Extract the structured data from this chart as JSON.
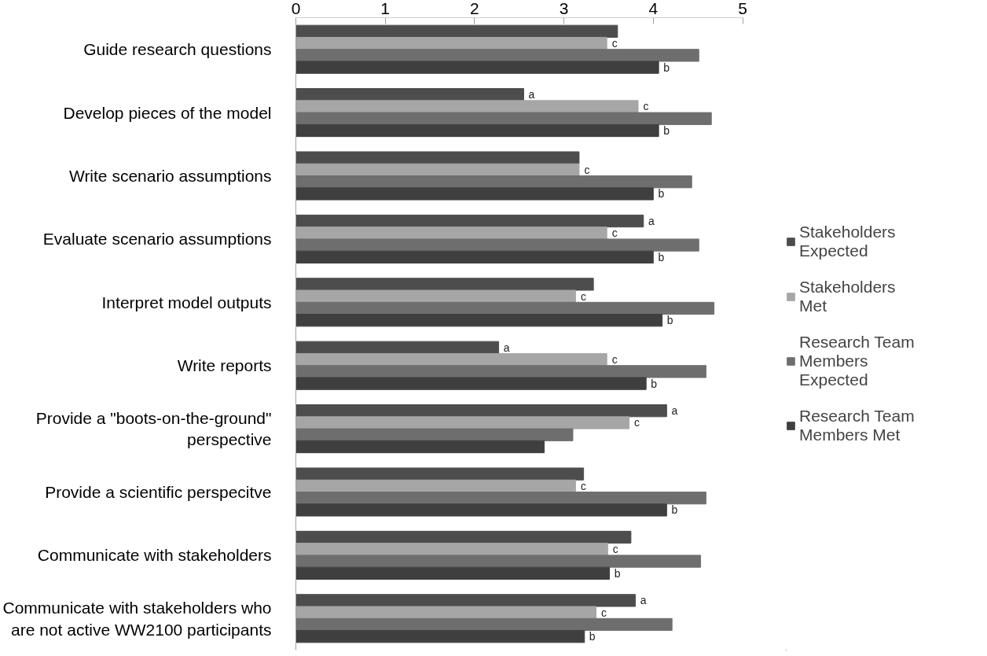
{
  "chart_data": {
    "type": "bar",
    "orientation": "horizontal",
    "categories": [
      "Guide research questions",
      "Develop pieces of the model",
      "Write scenario assumptions",
      "Evaluate scenario assumptions",
      "Interpret model outputs",
      "Write reports",
      "Provide a \"boots-on-the-ground\" perspective",
      "Provide a scientific perspecitve",
      "Communicate with stakeholders",
      "Communicate with stakeholders who are not active WW2100 participants"
    ],
    "series": [
      {
        "name": "Stakeholders Expected",
        "color": "#4d4d4d",
        "values": [
          3.6,
          2.55,
          3.17,
          3.89,
          3.33,
          2.27,
          4.15,
          3.22,
          3.75,
          3.8
        ],
        "value_labels": [
          null,
          "a",
          null,
          "a",
          null,
          "a",
          "a",
          null,
          null,
          "a"
        ]
      },
      {
        "name": "Stakeholders Met",
        "color": "#a6a6a6",
        "values": [
          3.48,
          3.83,
          3.17,
          3.48,
          3.13,
          3.48,
          3.73,
          3.13,
          3.49,
          3.36
        ],
        "value_labels": [
          "c",
          "c",
          "c",
          "c",
          "c",
          "c",
          "c",
          "c",
          "c",
          "c"
        ]
      },
      {
        "name": "Research Team Members Expected",
        "color": "#6e6e6e",
        "values": [
          4.51,
          4.65,
          4.43,
          4.51,
          4.68,
          4.59,
          3.1,
          4.59,
          4.53,
          4.21
        ]
      },
      {
        "name": "Research Team Members Met",
        "color": "#3f3f3f",
        "values": [
          4.06,
          4.06,
          4.0,
          4.0,
          4.1,
          3.92,
          2.78,
          4.15,
          3.51,
          3.23
        ],
        "value_labels": [
          "b",
          "b",
          "b",
          "b",
          "b",
          "b",
          null,
          "b",
          "b",
          "b"
        ]
      }
    ],
    "xlim": [
      0,
      5
    ],
    "xticks": [
      0,
      1,
      2,
      3,
      4,
      5
    ],
    "grid": false,
    "legend": "right"
  }
}
